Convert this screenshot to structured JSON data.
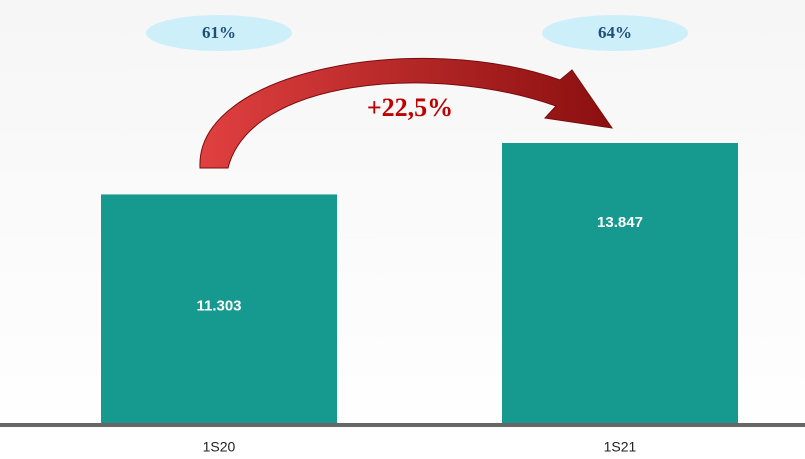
{
  "chart_data": {
    "type": "bar",
    "categories": [
      "1S20",
      "1S21"
    ],
    "values": [
      11303,
      13847
    ],
    "value_labels": [
      "11.303",
      "13.847"
    ],
    "color": "#16998f",
    "shares": {
      "values": [
        61,
        64
      ],
      "value_labels": [
        "61%",
        "64%"
      ],
      "color": "#cdeffa"
    },
    "growth": {
      "value": 22.5,
      "label": "+22,5%"
    }
  }
}
